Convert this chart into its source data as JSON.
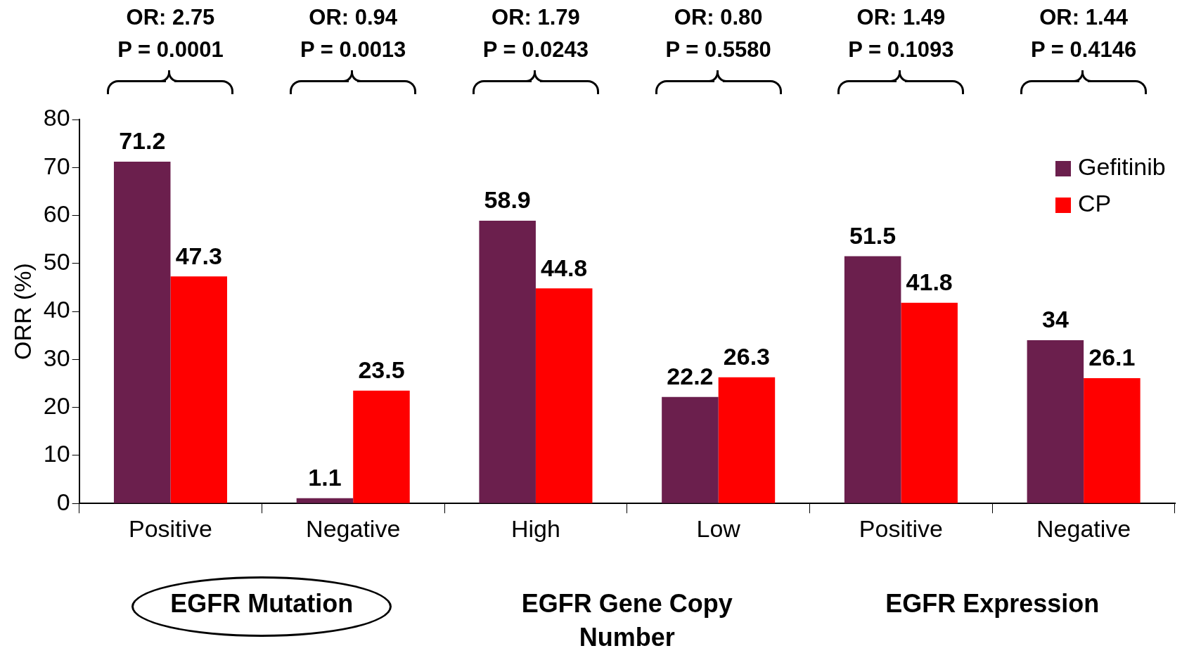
{
  "chart_data": {
    "type": "bar",
    "ylabel": "ORR (%)",
    "categories": [
      "Positive",
      "Negative",
      "High",
      "Low",
      "Positive",
      "Negative"
    ],
    "series": [
      {
        "name": "Gefitinib",
        "color": "#6b1f4d",
        "values": [
          71.2,
          1.1,
          58.9,
          22.2,
          51.5,
          34
        ]
      },
      {
        "name": "CP",
        "color": "#ff0000",
        "values": [
          47.3,
          23.5,
          44.8,
          26.3,
          41.8,
          26.1
        ]
      }
    ],
    "ylim": [
      0,
      80
    ],
    "yticks": [
      0,
      10,
      20,
      30,
      40,
      50,
      60,
      70,
      80
    ],
    "grid": false,
    "legend": "top right",
    "data_labels": true,
    "annotations": [
      "OR: 2.75",
      "OR: 0.94",
      "OR: 1.79",
      "OR: 0.80",
      "OR: 1.49",
      "OR: 1.44",
      "P = 0.0001",
      "P = 0.0013",
      "P = 0.0243",
      "P = 0.5580",
      "P = 0.1093",
      "P = 0.4146",
      "EGFR Mutation",
      "EGFR Gene Copy Number",
      "EGFR Expression"
    ]
  }
}
